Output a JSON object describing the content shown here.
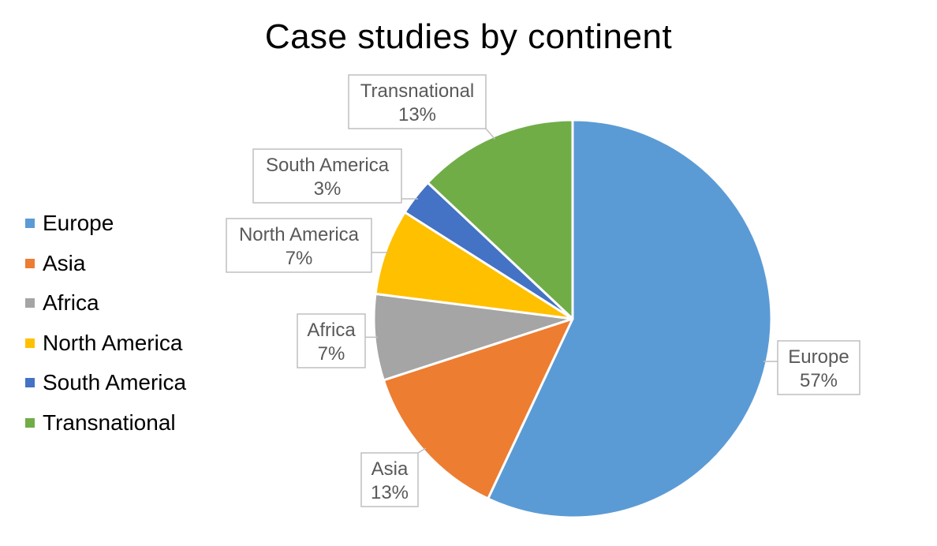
{
  "chart_data": {
    "type": "pie",
    "title": "Case studies by continent",
    "categories": [
      "Europe",
      "Asia",
      "Africa",
      "North America",
      "South America",
      "Transnational"
    ],
    "values": [
      57,
      13,
      7,
      7,
      3,
      13
    ],
    "labels": [
      "57%",
      "13%",
      "7%",
      "7%",
      "3%",
      "13%"
    ],
    "colors": [
      "#5B9BD5",
      "#ED7D31",
      "#A5A5A5",
      "#FFC000",
      "#4472C4",
      "#70AD47"
    ],
    "legend_position": "left",
    "data_label_style": "callout"
  }
}
